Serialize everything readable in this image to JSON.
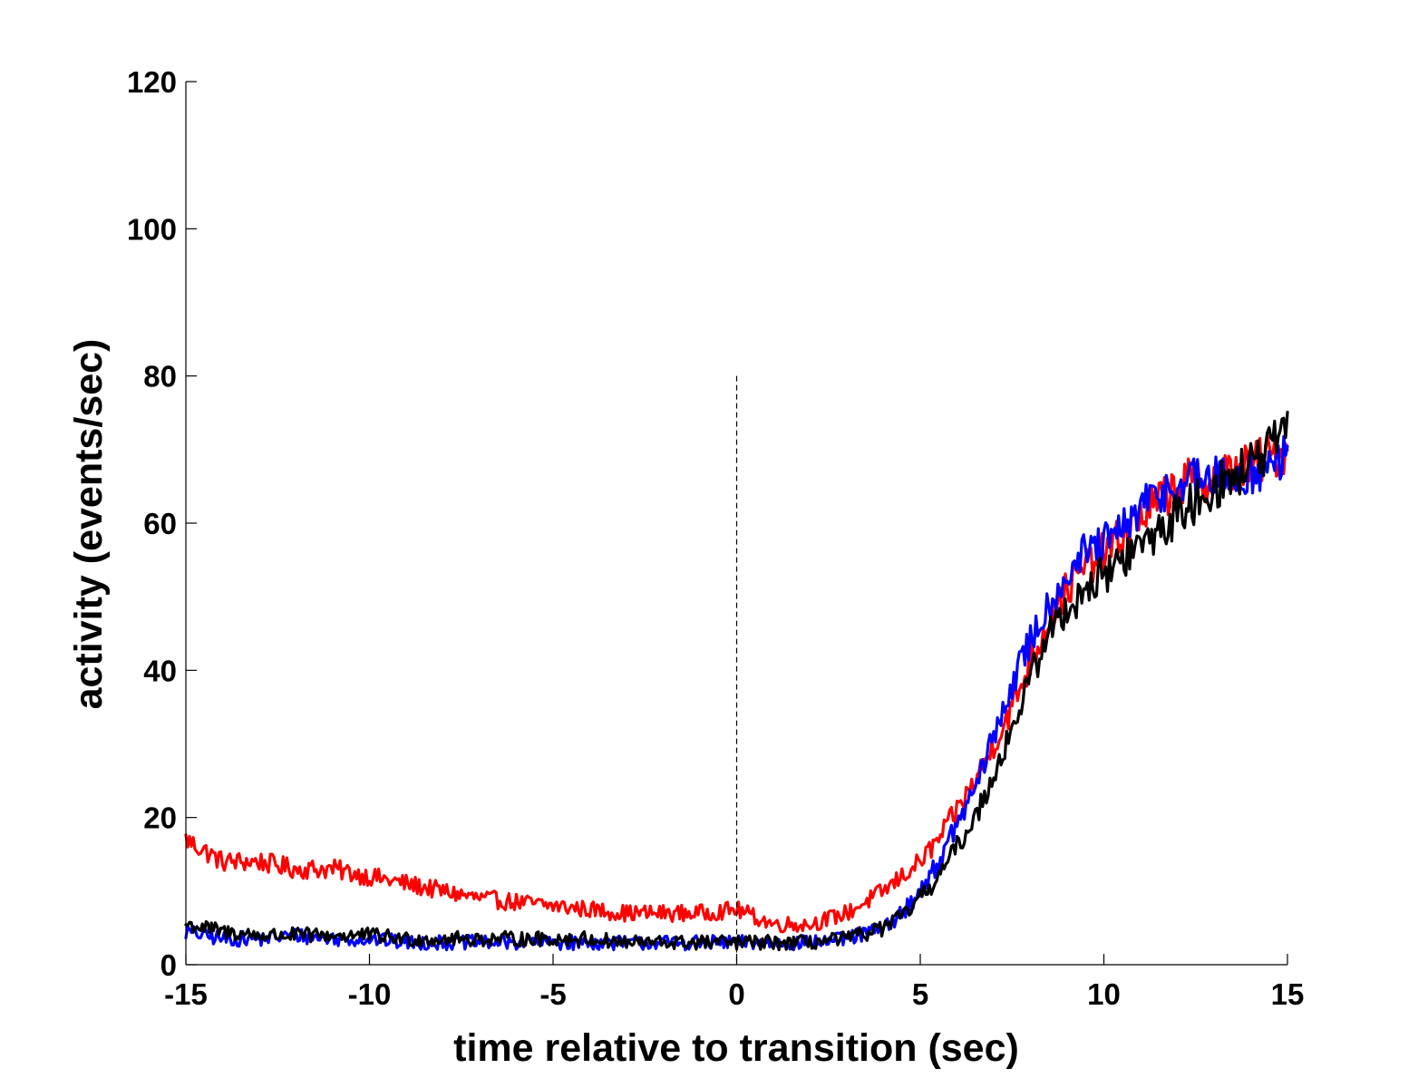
{
  "chart_data": {
    "type": "line",
    "title": "",
    "xlabel": "time relative to transition (sec)",
    "ylabel": "activity (events/sec)",
    "xlim": [
      -15,
      15
    ],
    "ylim": [
      0,
      120
    ],
    "xticks": [
      "-15",
      "-10",
      "-5",
      "0",
      "5",
      "10",
      "15"
    ],
    "yticks": [
      "0",
      "20",
      "40",
      "60",
      "80",
      "100",
      "120"
    ],
    "grid": false,
    "legend": "none",
    "reference_line": {
      "x": 0,
      "y_range": [
        0,
        80
      ],
      "style": "dashed",
      "color": "#000000"
    },
    "series": [
      {
        "color": "#ff0000",
        "x": [
          -15,
          -14,
          -13,
          -12,
          -11,
          -10,
          -9,
          -8,
          -7,
          -6,
          -5,
          -4,
          -3,
          -2,
          -1,
          0,
          1,
          2,
          3,
          4,
          5,
          5.5,
          6,
          6.5,
          7,
          7.5,
          8,
          8.5,
          9,
          9.5,
          10,
          10.5,
          11,
          11.5,
          12,
          12.5,
          13,
          13.5,
          14,
          14.5,
          15
        ],
        "values": [
          17,
          14,
          14,
          13,
          13,
          12,
          11,
          10,
          9,
          8.5,
          8,
          7.5,
          7,
          7,
          7,
          7.5,
          5.5,
          5.5,
          7,
          10,
          14,
          17,
          21,
          25,
          30,
          35,
          41,
          47,
          51,
          54,
          56,
          58,
          61,
          63,
          65,
          66,
          66,
          67,
          68,
          69,
          70
        ]
      },
      {
        "color": "#0000ff",
        "x": [
          -15,
          -14,
          -13,
          -12,
          -11,
          -10,
          -9,
          -8,
          -7,
          -6,
          -5,
          -4,
          -3,
          -2,
          -1,
          0,
          1,
          2,
          3,
          4,
          4.5,
          5,
          5.5,
          6,
          6.5,
          7,
          7.5,
          8,
          8.5,
          9,
          9.5,
          10,
          10.5,
          11,
          11.5,
          12,
          12.5,
          13,
          13.5,
          14,
          14.5,
          15
        ],
        "values": [
          4.5,
          3.5,
          3.5,
          4,
          3.5,
          3.5,
          3,
          3,
          3,
          3,
          3,
          3,
          3,
          3,
          3,
          3,
          3,
          3,
          3.5,
          5,
          7,
          10,
          14,
          19,
          24,
          31,
          38,
          44,
          49,
          53,
          56,
          57,
          59,
          62,
          64,
          65,
          66,
          66,
          66,
          67,
          67.5,
          69
        ]
      },
      {
        "color": "#000000",
        "x": [
          -15,
          -14,
          -13,
          -12,
          -11,
          -10,
          -9,
          -8,
          -7,
          -6,
          -5,
          -4,
          -3,
          -2,
          -1,
          0,
          1,
          2,
          3,
          4,
          4.5,
          5,
          5.5,
          6,
          6.5,
          7,
          7.5,
          8,
          8.5,
          9,
          9.5,
          10,
          10.5,
          11,
          11.5,
          12,
          12.5,
          13,
          13.5,
          14,
          14.5,
          15
        ],
        "values": [
          5.5,
          4.5,
          4,
          4,
          4,
          4,
          3.5,
          3.5,
          3.5,
          3.5,
          3.5,
          3.5,
          3,
          3,
          3,
          3,
          3,
          3,
          3.5,
          5,
          6.5,
          9,
          12,
          16,
          20,
          26,
          32,
          39,
          45,
          48.5,
          51,
          53,
          55,
          57,
          59,
          61,
          63,
          65,
          66,
          68,
          70,
          72
        ]
      }
    ]
  }
}
